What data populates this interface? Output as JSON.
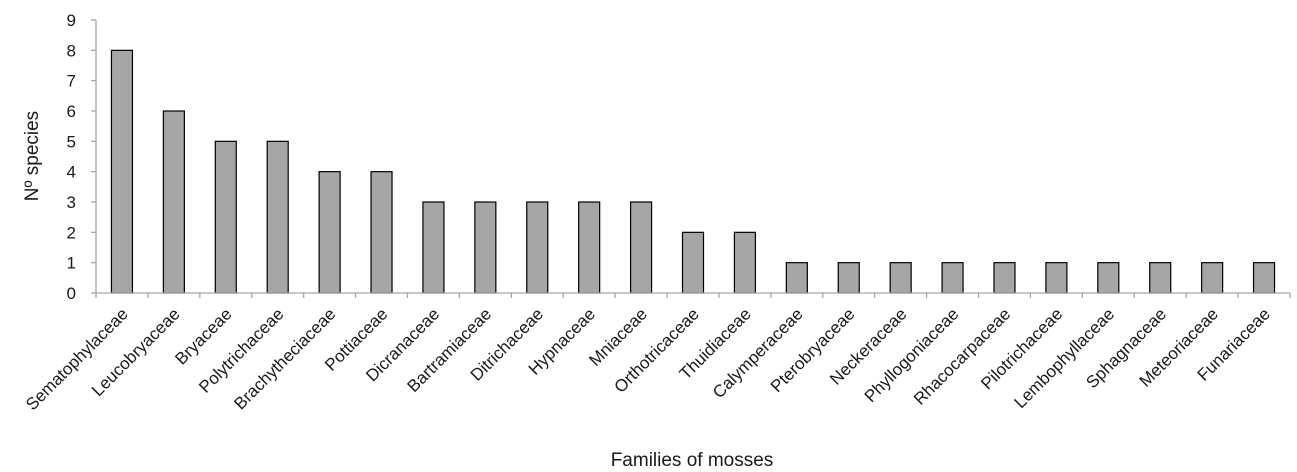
{
  "chart_data": {
    "type": "bar",
    "title": "",
    "xlabel": "Families of mosses",
    "ylabel": "Nº species",
    "ylim": [
      0,
      9
    ],
    "yticks": [
      0,
      1,
      2,
      3,
      4,
      5,
      6,
      7,
      8,
      9
    ],
    "grid": false,
    "legend": "none",
    "categories": [
      "Sematophylaceae",
      "Leucobryaceae",
      "Bryaceae",
      "Polytrichaceae",
      "Brachytheciaceae",
      "Pottiaceae",
      "Dicranaceae",
      "Bartramiaceae",
      "Ditrichaceae",
      "Hypnaceae",
      "Mniaceae",
      "Orthotricaceae",
      "Thuidiaceae",
      "Calymperaceae",
      "Pterobryaceae",
      "Neckeraceae",
      "Phyllogoniaceae",
      "Rhacocarpaceae",
      "Pilotrichaceae",
      "Lembophyllaceae",
      "Sphagnaceae",
      "Meteoriaceae",
      "Funariaceae"
    ],
    "values": [
      8,
      6,
      5,
      5,
      4,
      4,
      3,
      3,
      3,
      3,
      3,
      2,
      2,
      1,
      1,
      1,
      1,
      1,
      1,
      1,
      1,
      1,
      1
    ],
    "colors": {
      "bar_fill": "#a6a6a6",
      "bar_stroke": "#000000",
      "axis": "#a6a6a6",
      "text": "#1a1a1a"
    }
  }
}
